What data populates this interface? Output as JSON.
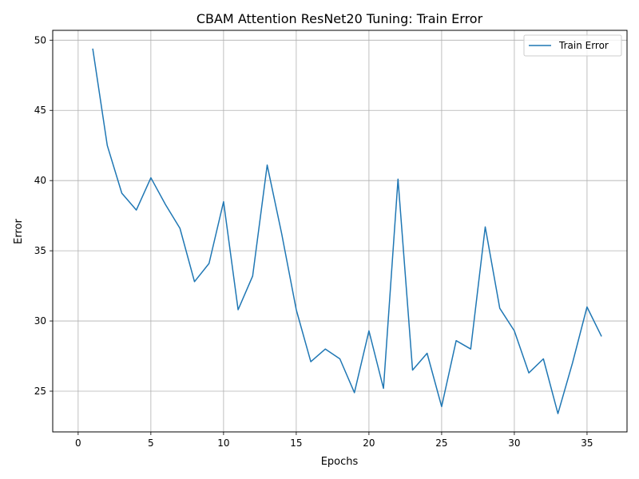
{
  "chart_data": {
    "type": "line",
    "title": "CBAM Attention ResNet20 Tuning: Train Error",
    "xlabel": "Epochs",
    "ylabel": "Error",
    "xlim": [
      -1.75,
      37.75
    ],
    "ylim": [
      22.1,
      50.7
    ],
    "xticks": [
      0,
      5,
      10,
      15,
      20,
      25,
      30,
      35
    ],
    "yticks": [
      25,
      30,
      35,
      40,
      45,
      50
    ],
    "grid": true,
    "legend_position": "top-right",
    "colors": {
      "series": "#1f77b4",
      "grid": "#b0b0b0"
    },
    "series": [
      {
        "name": "Train Error",
        "x": [
          1,
          2,
          3,
          4,
          5,
          6,
          7,
          8,
          9,
          10,
          11,
          12,
          13,
          14,
          15,
          16,
          17,
          18,
          19,
          20,
          21,
          22,
          23,
          24,
          25,
          26,
          27,
          28,
          29,
          30,
          31,
          32,
          33,
          34,
          35,
          36
        ],
        "values": [
          49.4,
          42.5,
          39.1,
          37.9,
          40.2,
          38.3,
          36.6,
          32.8,
          34.1,
          38.5,
          30.8,
          33.2,
          41.1,
          36.2,
          30.8,
          27.1,
          28.0,
          27.3,
          24.9,
          29.3,
          25.2,
          40.1,
          26.5,
          27.7,
          23.9,
          28.6,
          28.0,
          36.7,
          30.9,
          29.3,
          26.3,
          27.3,
          23.4,
          27.0,
          31.0,
          28.9
        ]
      }
    ]
  }
}
